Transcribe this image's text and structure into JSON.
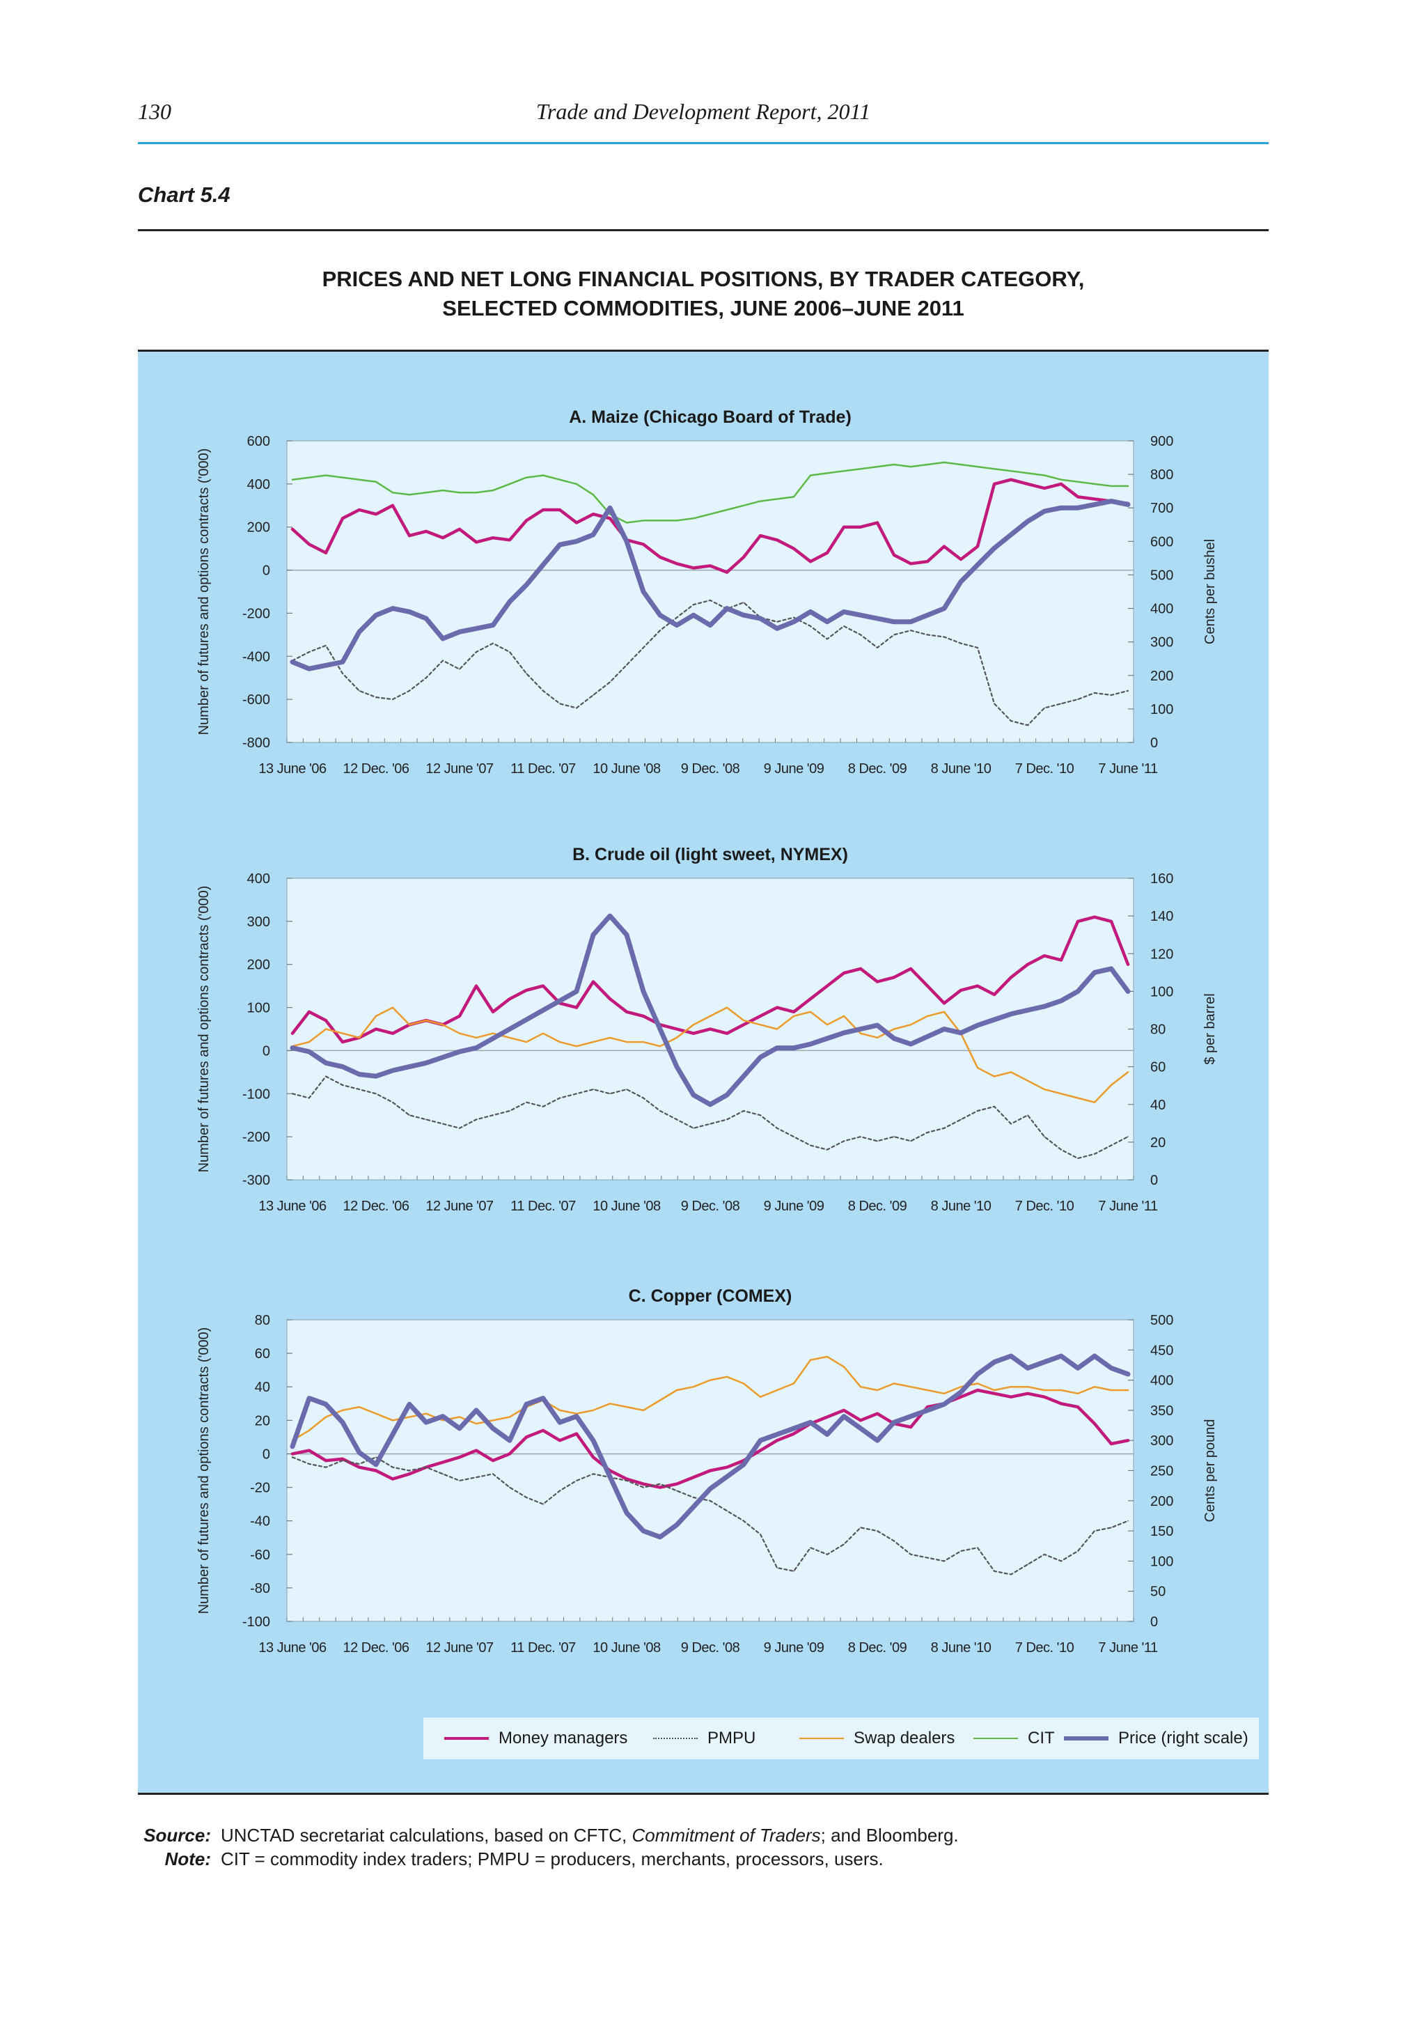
{
  "page": {
    "number": "130",
    "running_title": "Trade and Development Report, 2011"
  },
  "chart_label": "Chart 5.4",
  "title_lines": [
    "PRICES AND NET LONG FINANCIAL POSITIONS, BY TRADER CATEGORY,",
    "SELECTED COMMODITIES, JUNE 2006–JUNE 2011"
  ],
  "colors": {
    "money_managers": "#c21a7c",
    "pmpu": "#555555",
    "swap_dealers": "#eb9a2b",
    "cit": "#5cb947",
    "price": "#6a6aad",
    "panel_bg": "#aedcf5",
    "plot_bg": "#e4f4fc",
    "header_rule": "#27a3d4"
  },
  "legend": [
    {
      "label": "Money managers",
      "key": "money_managers"
    },
    {
      "label": "PMPU",
      "key": "pmpu"
    },
    {
      "label": "Swap dealers",
      "key": "swap_dealers"
    },
    {
      "label": "CIT",
      "key": "cit"
    },
    {
      "label": "Price (right scale)",
      "key": "price"
    }
  ],
  "chart_data": [
    {
      "type": "line",
      "title": "A. Maize (Chicago Board of Trade)",
      "ylabel": "Number of futures and options contracts ('000)",
      "y2label": "Cents per bushel",
      "ylim": [
        -800,
        600
      ],
      "y2lim": [
        0,
        900
      ],
      "yticks": [
        "600",
        "400",
        "200",
        "0",
        "-200",
        "-400",
        "-600",
        "-800"
      ],
      "y2ticks": [
        "900",
        "800",
        "700",
        "600",
        "500",
        "400",
        "300",
        "200",
        "100",
        "0"
      ],
      "xticks": [
        "13 June '06",
        "12 Dec. '06",
        "12 June '07",
        "11 Dec. '07",
        "10 June '08",
        "9 Dec. '08",
        "9 June '09",
        "8 Dec. '09",
        "8 June '10",
        "7 Dec. '10",
        "7 June '11"
      ],
      "series": [
        {
          "name": "Money managers",
          "axis": "left",
          "values": [
            190,
            120,
            80,
            240,
            280,
            260,
            300,
            160,
            180,
            150,
            190,
            130,
            150,
            140,
            230,
            280,
            280,
            220,
            260,
            240,
            140,
            120,
            60,
            30,
            10,
            20,
            -10,
            60,
            160,
            140,
            100,
            40,
            80,
            200,
            200,
            220,
            70,
            30,
            40,
            110,
            50,
            110,
            400,
            420,
            400,
            380,
            400,
            340,
            330,
            320,
            310
          ]
        },
        {
          "name": "PMPU",
          "axis": "left",
          "values": [
            -420,
            -380,
            -350,
            -480,
            -560,
            -590,
            -600,
            -560,
            -500,
            -420,
            -460,
            -380,
            -340,
            -380,
            -480,
            -560,
            -620,
            -640,
            -580,
            -520,
            -440,
            -360,
            -280,
            -220,
            -160,
            -140,
            -180,
            -150,
            -220,
            -240,
            -220,
            -260,
            -320,
            -260,
            -300,
            -360,
            -300,
            -280,
            -300,
            -310,
            -340,
            -360,
            -620,
            -700,
            -720,
            -640,
            -620,
            -600,
            -570,
            -580,
            -560
          ]
        },
        {
          "name": "CIT",
          "axis": "left",
          "values": [
            420,
            430,
            440,
            430,
            420,
            410,
            360,
            350,
            360,
            370,
            360,
            360,
            370,
            400,
            430,
            440,
            420,
            400,
            350,
            260,
            220,
            230,
            230,
            230,
            240,
            260,
            280,
            300,
            320,
            330,
            340,
            440,
            450,
            460,
            470,
            480,
            490,
            480,
            490,
            500,
            490,
            480,
            470,
            460,
            450,
            440,
            420,
            410,
            400,
            390,
            390
          ]
        },
        {
          "name": "Price (right scale)",
          "axis": "right",
          "values": [
            240,
            220,
            230,
            240,
            330,
            380,
            400,
            390,
            370,
            310,
            330,
            340,
            350,
            420,
            470,
            530,
            590,
            600,
            620,
            700,
            600,
            450,
            380,
            350,
            380,
            350,
            400,
            380,
            370,
            340,
            360,
            390,
            360,
            390,
            380,
            370,
            360,
            360,
            380,
            400,
            480,
            530,
            580,
            620,
            660,
            690,
            700,
            700,
            710,
            720,
            710
          ]
        }
      ]
    },
    {
      "type": "line",
      "title": "B. Crude oil (light sweet, NYMEX)",
      "ylabel": "Number of futures and options contracts ('000)",
      "y2label": "$ per barrel",
      "ylim": [
        -300,
        400
      ],
      "y2lim": [
        0,
        160
      ],
      "yticks": [
        "400",
        "300",
        "200",
        "100",
        "0",
        "-100",
        "-200",
        "-300"
      ],
      "y2ticks": [
        "160",
        "140",
        "120",
        "100",
        "80",
        "60",
        "40",
        "20",
        "0"
      ],
      "xticks": [
        "13 June '06",
        "12 Dec. '06",
        "12 June '07",
        "11 Dec. '07",
        "10 June '08",
        "9 Dec. '08",
        "9 June '09",
        "8 Dec. '09",
        "8 June '10",
        "7 Dec. '10",
        "7 June '11"
      ],
      "series": [
        {
          "name": "Money managers",
          "axis": "left",
          "values": [
            40,
            90,
            70,
            20,
            30,
            50,
            40,
            60,
            70,
            60,
            80,
            150,
            90,
            120,
            140,
            150,
            110,
            100,
            160,
            120,
            90,
            80,
            60,
            50,
            40,
            50,
            40,
            60,
            80,
            100,
            90,
            120,
            150,
            180,
            190,
            160,
            170,
            190,
            150,
            110,
            140,
            150,
            130,
            170,
            200,
            220,
            210,
            300,
            310,
            300,
            200
          ]
        },
        {
          "name": "PMPU",
          "axis": "left",
          "values": [
            -100,
            -110,
            -60,
            -80,
            -90,
            -100,
            -120,
            -150,
            -160,
            -170,
            -180,
            -160,
            -150,
            -140,
            -120,
            -130,
            -110,
            -100,
            -90,
            -100,
            -90,
            -110,
            -140,
            -160,
            -180,
            -170,
            -160,
            -140,
            -150,
            -180,
            -200,
            -220,
            -230,
            -210,
            -200,
            -210,
            -200,
            -210,
            -190,
            -180,
            -160,
            -140,
            -130,
            -170,
            -150,
            -200,
            -230,
            -250,
            -240,
            -220,
            -200
          ]
        },
        {
          "name": "Swap dealers",
          "axis": "left",
          "values": [
            10,
            20,
            50,
            40,
            30,
            80,
            100,
            60,
            70,
            60,
            40,
            30,
            40,
            30,
            20,
            40,
            20,
            10,
            20,
            30,
            20,
            20,
            10,
            30,
            60,
            80,
            100,
            70,
            60,
            50,
            80,
            90,
            60,
            80,
            40,
            30,
            50,
            60,
            80,
            90,
            40,
            -40,
            -60,
            -50,
            -70,
            -90,
            -100,
            -110,
            -120,
            -80,
            -50
          ]
        },
        {
          "name": "Price (right scale)",
          "axis": "right",
          "values": [
            70,
            68,
            62,
            60,
            56,
            55,
            58,
            60,
            62,
            65,
            68,
            70,
            75,
            80,
            85,
            90,
            95,
            100,
            130,
            140,
            130,
            100,
            80,
            60,
            45,
            40,
            45,
            55,
            65,
            70,
            70,
            72,
            75,
            78,
            80,
            82,
            75,
            72,
            76,
            80,
            78,
            82,
            85,
            88,
            90,
            92,
            95,
            100,
            110,
            112,
            100
          ]
        }
      ]
    },
    {
      "type": "line",
      "title": "C. Copper (COMEX)",
      "ylabel": "Number of futures and options contracts ('000)",
      "y2label": "Cents per pound",
      "ylim": [
        -100,
        80
      ],
      "y2lim": [
        0,
        500
      ],
      "yticks": [
        "80",
        "60",
        "40",
        "20",
        "0",
        "-20",
        "-40",
        "-60",
        "-80",
        "-100"
      ],
      "y2ticks": [
        "500",
        "450",
        "400",
        "350",
        "300",
        "250",
        "200",
        "150",
        "100",
        "50",
        "0"
      ],
      "xticks": [
        "13 June '06",
        "12 Dec. '06",
        "12 June '07",
        "11 Dec. '07",
        "10 June '08",
        "9 Dec. '08",
        "9 June '09",
        "8 Dec. '09",
        "8 June '10",
        "7 Dec. '10",
        "7 June '11"
      ],
      "series": [
        {
          "name": "Money managers",
          "axis": "left",
          "values": [
            0,
            2,
            -4,
            -3,
            -8,
            -10,
            -15,
            -12,
            -8,
            -5,
            -2,
            2,
            -4,
            0,
            10,
            14,
            8,
            12,
            -2,
            -10,
            -15,
            -18,
            -20,
            -18,
            -14,
            -10,
            -8,
            -4,
            2,
            8,
            12,
            18,
            22,
            26,
            20,
            24,
            18,
            16,
            28,
            30,
            34,
            38,
            36,
            34,
            36,
            34,
            30,
            28,
            18,
            6,
            8
          ]
        },
        {
          "name": "PMPU",
          "axis": "left",
          "values": [
            -2,
            -6,
            -8,
            -4,
            -6,
            -2,
            -8,
            -10,
            -8,
            -12,
            -16,
            -14,
            -12,
            -20,
            -26,
            -30,
            -22,
            -16,
            -12,
            -14,
            -16,
            -20,
            -18,
            -22,
            -26,
            -28,
            -34,
            -40,
            -48,
            -68,
            -70,
            -56,
            -60,
            -54,
            -44,
            -46,
            -52,
            -60,
            -62,
            -64,
            -58,
            -56,
            -70,
            -72,
            -66,
            -60,
            -64,
            -58,
            -46,
            -44,
            -40
          ]
        },
        {
          "name": "Swap dealers",
          "axis": "left",
          "values": [
            8,
            14,
            22,
            26,
            28,
            24,
            20,
            22,
            24,
            20,
            22,
            18,
            20,
            22,
            28,
            32,
            26,
            24,
            26,
            30,
            28,
            26,
            32,
            38,
            40,
            44,
            46,
            42,
            34,
            38,
            42,
            56,
            58,
            52,
            40,
            38,
            42,
            40,
            38,
            36,
            40,
            42,
            38,
            40,
            40,
            38,
            38,
            36,
            40,
            38,
            38
          ]
        },
        {
          "name": "Price (right scale)",
          "axis": "right",
          "values": [
            290,
            370,
            360,
            330,
            280,
            260,
            310,
            360,
            330,
            340,
            320,
            350,
            320,
            300,
            360,
            370,
            330,
            340,
            300,
            240,
            180,
            150,
            140,
            160,
            190,
            220,
            240,
            260,
            300,
            310,
            320,
            330,
            310,
            340,
            320,
            300,
            330,
            340,
            350,
            360,
            380,
            410,
            430,
            440,
            420,
            430,
            440,
            420,
            440,
            420,
            410
          ]
        }
      ]
    }
  ],
  "source": {
    "label": "Source:",
    "text_before": "UNCTAD secretariat calculations,  based on CFTC, ",
    "text_italic": "Commitment of Traders",
    "text_after": "; and Bloomberg."
  },
  "note": {
    "label": "Note:",
    "text": "CIT = commodity index traders; PMPU = producers, merchants, processors, users."
  }
}
